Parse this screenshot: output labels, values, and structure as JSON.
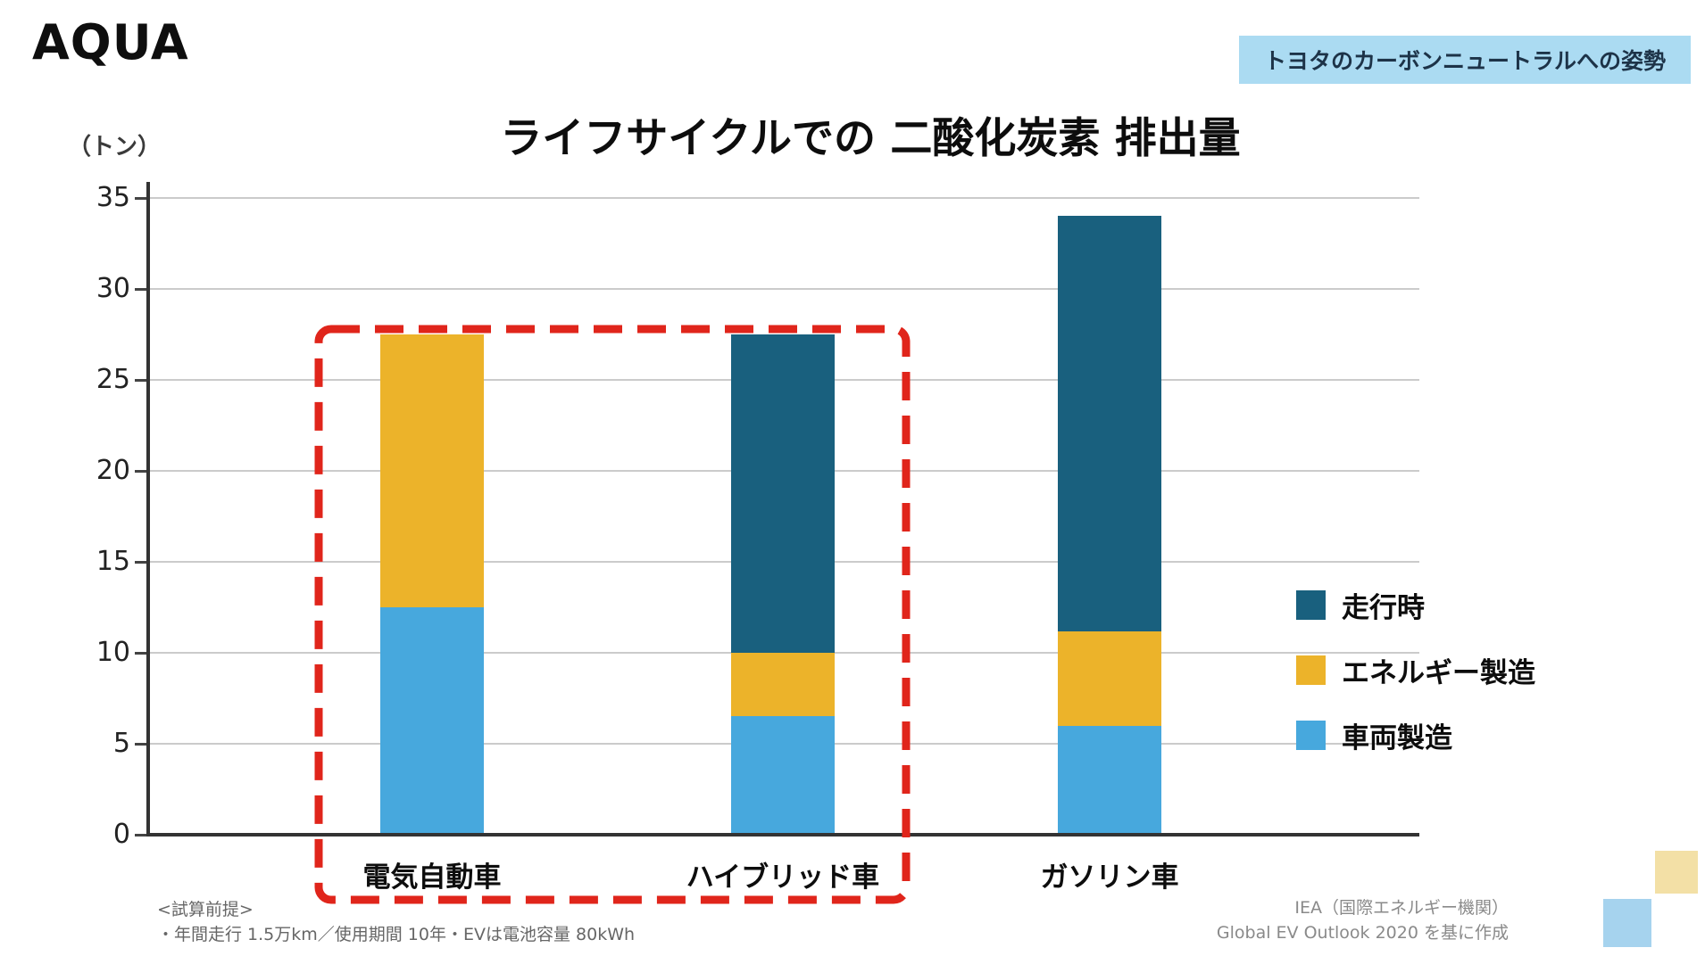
{
  "header": {
    "logo": "AQUA",
    "badge": "トヨタのカーボンニュートラルへの姿勢"
  },
  "chart_data": {
    "type": "bar",
    "stacked": true,
    "title": "ライフサイクルでの 二酸化炭素 排出量",
    "unit_label": "（トン）",
    "categories": [
      "電気自動車",
      "ハイブリッド車",
      "ガソリン車"
    ],
    "series": [
      {
        "name": "車両製造",
        "color": "#47a8dd",
        "values": [
          12.5,
          6.5,
          6.0
        ]
      },
      {
        "name": "エネルギー製造",
        "color": "#ecb32a",
        "values": [
          15.0,
          3.5,
          5.2
        ]
      },
      {
        "name": "走行時",
        "color": "#19607e",
        "values": [
          0,
          17.5,
          22.8
        ]
      }
    ],
    "ylim": [
      0,
      35
    ],
    "yticks": [
      0,
      5,
      10,
      15,
      20,
      25,
      30,
      35
    ],
    "grid": true,
    "legend_position": "right",
    "annotation": "赤い破線の枠が 電気自動車 と ハイブリッド車 の2本を囲む",
    "annotation_color": "#e0251b"
  },
  "legend": {
    "items": [
      {
        "label": "走行時",
        "color": "#19607e"
      },
      {
        "label": "エネルギー製造",
        "color": "#ecb32a"
      },
      {
        "label": "車両製造",
        "color": "#47a8dd"
      }
    ]
  },
  "footnotes": {
    "left_title": "<試算前提>",
    "left_body": "・年間走行 1.5万km／使用期間 10年・EVは電池容量 80kWh",
    "right_line1": "IEA（国際エネルギー機関）",
    "right_line2": "Global EV Outlook 2020 を基に作成"
  }
}
